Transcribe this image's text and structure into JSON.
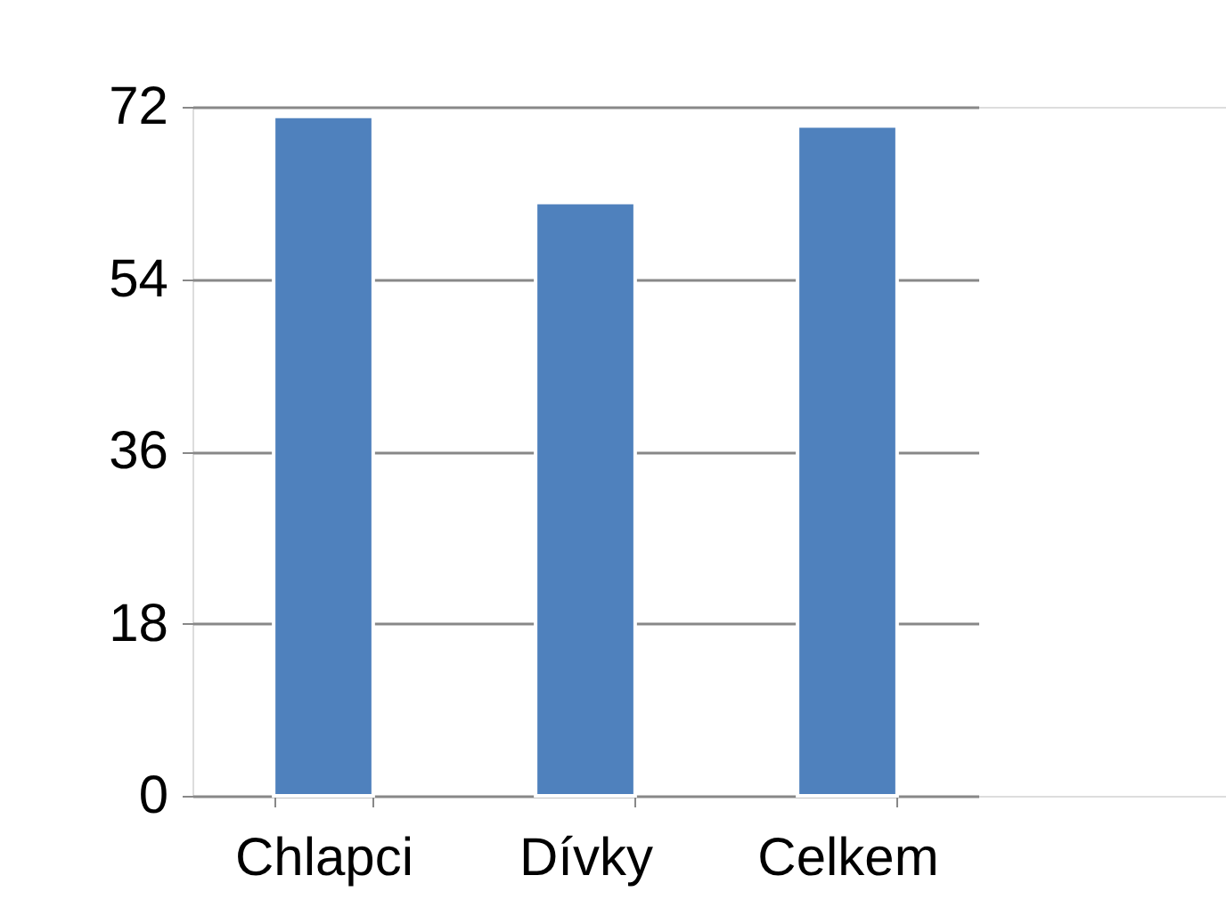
{
  "chart_data": {
    "type": "bar",
    "categories": [
      "Chlapci",
      "Dívky",
      "Celkem"
    ],
    "values": [
      71,
      62,
      70
    ],
    "color": "#4f81bd",
    "ylim": [
      0,
      72
    ],
    "yticks": [
      0,
      18,
      36,
      54,
      72
    ],
    "grid": "y"
  }
}
